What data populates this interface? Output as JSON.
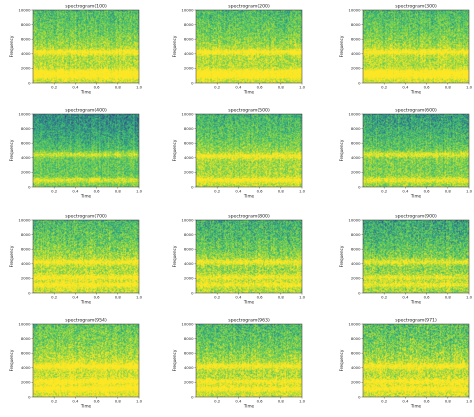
{
  "figure": {
    "colormap": [
      "#440154",
      "#31688e",
      "#35b779",
      "#8fd744",
      "#fde725"
    ]
  },
  "chart_data": [
    {
      "type": "heatmap",
      "title": "spectrogram(100)",
      "xlabel": "Time",
      "ylabel": "Frequency",
      "xlim": [
        0,
        1.0
      ],
      "ylim": [
        0,
        10000
      ],
      "xticks": [
        "0.2",
        "0.4",
        "0.6",
        "0.8",
        "1.0"
      ],
      "yticks": [
        "0",
        "2000",
        "4000",
        "6000",
        "8000",
        "10000"
      ],
      "bands_hz": [
        1000,
        1600,
        4300
      ],
      "top_level": 0.55,
      "noise_level": 0.4
    },
    {
      "type": "heatmap",
      "title": "spectrogram(200)",
      "xlabel": "Time",
      "ylabel": "Frequency",
      "xlim": [
        0,
        1.0
      ],
      "ylim": [
        0,
        10000
      ],
      "xticks": [
        "0.2",
        "0.4",
        "0.6",
        "0.8",
        "1.0"
      ],
      "yticks": [
        "0",
        "2000",
        "4000",
        "6000",
        "8000",
        "10000"
      ],
      "bands_hz": [
        1000,
        1600,
        4300
      ],
      "top_level": 0.55,
      "noise_level": 0.4
    },
    {
      "type": "heatmap",
      "title": "spectrogram(300)",
      "xlabel": "Time",
      "ylabel": "Frequency",
      "xlim": [
        0,
        1.0
      ],
      "ylim": [
        0,
        10000
      ],
      "xticks": [
        "0.2",
        "0.4",
        "0.6",
        "0.8",
        "1.0"
      ],
      "yticks": [
        "0",
        "2000",
        "4000",
        "6000",
        "8000",
        "10000"
      ],
      "bands_hz": [
        1000,
        1600,
        4300
      ],
      "top_level": 0.55,
      "noise_level": 0.4
    },
    {
      "type": "heatmap",
      "title": "spectrogram(400)",
      "xlabel": "Time",
      "ylabel": "Frequency",
      "xlim": [
        0,
        1.0
      ],
      "ylim": [
        0,
        10000
      ],
      "xticks": [
        "0.2",
        "0.4",
        "0.6",
        "0.8",
        "1.0"
      ],
      "yticks": [
        "0",
        "2000",
        "4000",
        "6000",
        "8000",
        "10000"
      ],
      "bands_hz": [
        1000,
        4500
      ],
      "top_level": 0.35,
      "noise_level": 0.35
    },
    {
      "type": "heatmap",
      "title": "spectrogram(500)",
      "xlabel": "Time",
      "ylabel": "Frequency",
      "xlim": [
        0,
        1.0
      ],
      "ylim": [
        0,
        10000
      ],
      "xticks": [
        "0.2",
        "0.4",
        "0.6",
        "0.8",
        "1.0"
      ],
      "yticks": [
        "0",
        "2000",
        "4000",
        "6000",
        "8000",
        "10000"
      ],
      "bands_hz": [
        1000,
        4300
      ],
      "top_level": 0.5,
      "noise_level": 0.4
    },
    {
      "type": "heatmap",
      "title": "spectrogram(600)",
      "xlabel": "Time",
      "ylabel": "Frequency",
      "xlim": [
        0,
        1.0
      ],
      "ylim": [
        0,
        10000
      ],
      "xticks": [
        "0.2",
        "0.4",
        "0.6",
        "0.8",
        "1.0"
      ],
      "yticks": [
        "0",
        "2000",
        "4000",
        "6000",
        "8000",
        "10000"
      ],
      "bands_hz": [
        1000,
        4500
      ],
      "top_level": 0.42,
      "noise_level": 0.4
    },
    {
      "type": "heatmap",
      "title": "spectrogram(700)",
      "xlabel": "Time",
      "ylabel": "Frequency",
      "xlim": [
        0,
        1.0
      ],
      "ylim": [
        0,
        10000
      ],
      "xticks": [
        "0.2",
        "0.4",
        "0.6",
        "0.8",
        "1.0"
      ],
      "yticks": [
        "0",
        "2000",
        "4000",
        "6000",
        "8000",
        "10000"
      ],
      "bands_hz": [
        1200,
        2200,
        4300
      ],
      "top_level": 0.55,
      "noise_level": 0.45
    },
    {
      "type": "heatmap",
      "title": "spectrogram(800)",
      "xlabel": "Time",
      "ylabel": "Frequency",
      "xlim": [
        0,
        1.0
      ],
      "ylim": [
        0,
        10000
      ],
      "xticks": [
        "0.2",
        "0.4",
        "0.6",
        "0.8",
        "1.0"
      ],
      "yticks": [
        "0",
        "2000",
        "4000",
        "6000",
        "8000",
        "10000"
      ],
      "bands_hz": [
        1200,
        2200,
        4300
      ],
      "top_level": 0.5,
      "noise_level": 0.45
    },
    {
      "type": "heatmap",
      "title": "spectrogram(900)",
      "xlabel": "Time",
      "ylabel": "Frequency",
      "xlim": [
        0,
        1.0
      ],
      "ylim": [
        0,
        10000
      ],
      "xticks": [
        "0.2",
        "0.4",
        "0.6",
        "0.8",
        "1.0"
      ],
      "yticks": [
        "0",
        "2000",
        "4000",
        "6000",
        "8000",
        "10000"
      ],
      "bands_hz": [
        1200,
        2200,
        4300
      ],
      "top_level": 0.45,
      "noise_level": 0.45
    },
    {
      "type": "heatmap",
      "title": "spectrogram(954)",
      "xlabel": "Time",
      "ylabel": "Frequency",
      "xlim": [
        0,
        1.0
      ],
      "ylim": [
        0,
        10000
      ],
      "xticks": [
        "0.2",
        "0.4",
        "0.6",
        "0.8",
        "1.0"
      ],
      "yticks": [
        "0",
        "2000",
        "4000",
        "6000",
        "8000",
        "10000"
      ],
      "bands_hz": [
        1200,
        2200,
        4300
      ],
      "top_level": 0.62,
      "noise_level": 0.45
    },
    {
      "type": "heatmap",
      "title": "spectrogram(963)",
      "xlabel": "Time",
      "ylabel": "Frequency",
      "xlim": [
        0,
        1.0
      ],
      "ylim": [
        0,
        10000
      ],
      "xticks": [
        "0.2",
        "0.4",
        "0.6",
        "0.8",
        "1.0"
      ],
      "yticks": [
        "0",
        "2000",
        "4000",
        "6000",
        "8000",
        "10000"
      ],
      "bands_hz": [
        1200,
        2200,
        4300
      ],
      "top_level": 0.55,
      "noise_level": 0.45
    },
    {
      "type": "heatmap",
      "title": "spectrogram(971)",
      "xlabel": "Time",
      "ylabel": "Frequency",
      "xlim": [
        0,
        1.0
      ],
      "ylim": [
        0,
        10000
      ],
      "xticks": [
        "0.2",
        "0.4",
        "0.6",
        "0.8",
        "1.0"
      ],
      "yticks": [
        "0",
        "2000",
        "4000",
        "6000",
        "8000",
        "10000"
      ],
      "bands_hz": [
        1200,
        2200,
        4300
      ],
      "top_level": 0.58,
      "noise_level": 0.5
    }
  ]
}
